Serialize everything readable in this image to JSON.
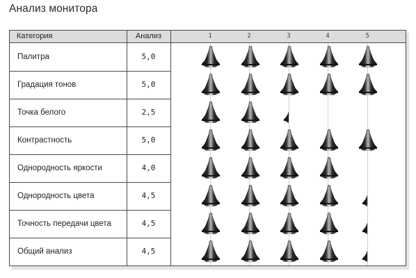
{
  "title": "Анализ монитора",
  "header": {
    "category_label": "Категория",
    "score_label": "Анализ",
    "scale_ticks": [
      "1",
      "2",
      "3",
      "4",
      "5"
    ]
  },
  "rating_icon": "bell-icon",
  "colors": {
    "border": "#4a4a4a",
    "header_bg": "#dcdcdc",
    "grid": "#cfcfcf",
    "icon": "#1a1a1a"
  },
  "rows": [
    {
      "category": "Палитра",
      "score_text": "5,0",
      "score": 5.0
    },
    {
      "category": "Градация тонов",
      "score_text": "5,0",
      "score": 5.0
    },
    {
      "category": "Точка белого",
      "score_text": "2,5",
      "score": 2.5
    },
    {
      "category": "Контрастность",
      "score_text": "5,0",
      "score": 5.0
    },
    {
      "category": "Однородность яркости",
      "score_text": "4,0",
      "score": 4.0
    },
    {
      "category": "Однородность цвета",
      "score_text": "4,5",
      "score": 4.5
    },
    {
      "category": "Точность передачи цвета",
      "score_text": "4,5",
      "score": 4.5
    },
    {
      "category": "Общий анализ",
      "score_text": "4,5",
      "score": 4.5
    }
  ]
}
